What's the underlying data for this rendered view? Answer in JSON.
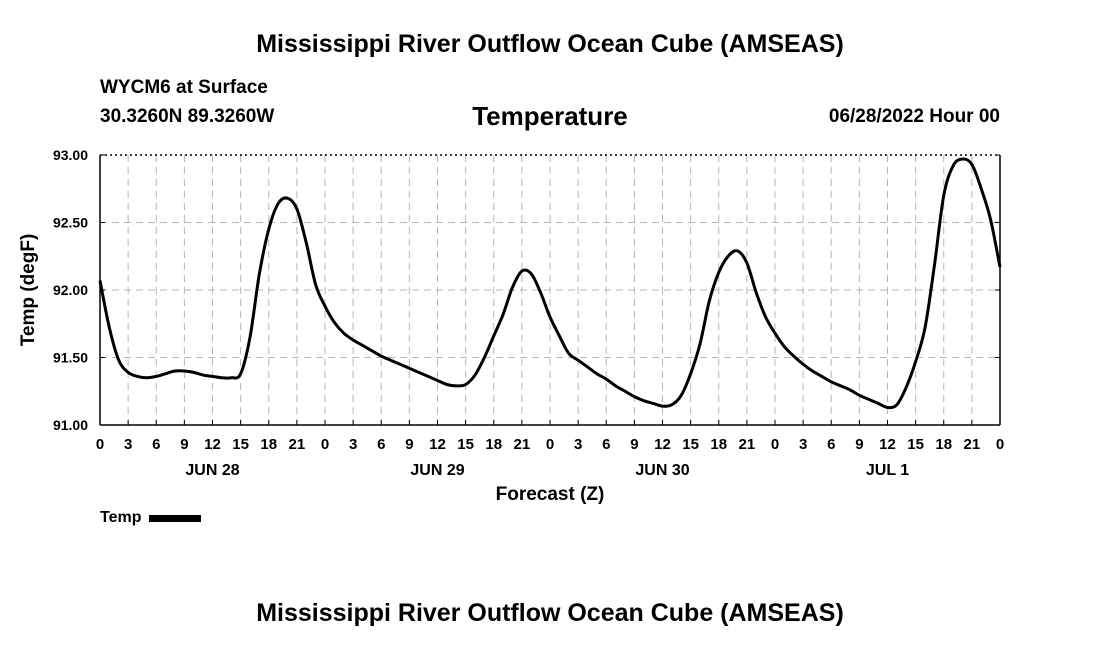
{
  "header": {
    "title": "Mississippi River Outflow Ocean Cube (AMSEAS)",
    "station": "WYCM6 at Surface",
    "coords": "30.3260N  89.3260W",
    "datetime": "06/28/2022 Hour 00"
  },
  "footer": {
    "title": "Mississippi River Outflow Ocean Cube (AMSEAS)"
  },
  "chart_data": {
    "type": "line",
    "title": "Temperature",
    "xlabel": "Forecast (Z)",
    "ylabel": "Temp (degF)",
    "xlim": [
      0,
      96
    ],
    "ylim": [
      91.0,
      93.0
    ],
    "y_ticks": [
      "91.00",
      "91.50",
      "92.00",
      "92.50",
      "93.00"
    ],
    "x_ticks": [
      0,
      3,
      6,
      9,
      12,
      15,
      18,
      21,
      24,
      27,
      30,
      33,
      36,
      39,
      42,
      45,
      48,
      51,
      54,
      57,
      60,
      63,
      66,
      69,
      72,
      75,
      78,
      81,
      84,
      87,
      90,
      93,
      96
    ],
    "x_tick_labels": [
      "0",
      "3",
      "6",
      "9",
      "12",
      "15",
      "18",
      "21",
      "0",
      "3",
      "6",
      "9",
      "12",
      "15",
      "18",
      "21",
      "0",
      "3",
      "6",
      "9",
      "12",
      "15",
      "18",
      "21",
      "0",
      "3",
      "6",
      "9",
      "12",
      "15",
      "18",
      "21",
      "0"
    ],
    "day_labels": [
      {
        "x": 12,
        "label": "JUN 28"
      },
      {
        "x": 36,
        "label": "JUN 29"
      },
      {
        "x": 60,
        "label": "JUN 30"
      },
      {
        "x": 84,
        "label": "JUL 1"
      }
    ],
    "grid": true,
    "line_color": "#000000",
    "series": [
      {
        "name": "Temp",
        "x": [
          0,
          1,
          2,
          3,
          4,
          5,
          6,
          7,
          8,
          9,
          10,
          11,
          12,
          13,
          14,
          15,
          16,
          17,
          18,
          19,
          20,
          21,
          22,
          23,
          24,
          25,
          26,
          27,
          28,
          29,
          30,
          31,
          32,
          33,
          34,
          35,
          36,
          37,
          38,
          39,
          40,
          41,
          42,
          43,
          44,
          45,
          46,
          47,
          48,
          49,
          50,
          51,
          52,
          53,
          54,
          55,
          56,
          57,
          58,
          59,
          60,
          61,
          62,
          63,
          64,
          65,
          66,
          67,
          68,
          69,
          70,
          71,
          72,
          73,
          74,
          75,
          76,
          77,
          78,
          79,
          80,
          81,
          82,
          83,
          84,
          85,
          86,
          87,
          88,
          89,
          90,
          91,
          92,
          93,
          94,
          95,
          96
        ],
        "values": [
          92.07,
          91.72,
          91.48,
          91.39,
          91.36,
          91.35,
          91.36,
          91.38,
          91.4,
          91.4,
          91.39,
          91.37,
          91.36,
          91.35,
          91.35,
          91.38,
          91.65,
          92.12,
          92.45,
          92.64,
          92.68,
          92.6,
          92.35,
          92.04,
          91.88,
          91.76,
          91.68,
          91.63,
          91.59,
          91.55,
          91.51,
          91.48,
          91.45,
          91.42,
          91.39,
          91.36,
          91.33,
          91.3,
          91.29,
          91.3,
          91.37,
          91.5,
          91.66,
          91.82,
          92.02,
          92.14,
          92.12,
          91.98,
          91.8,
          91.66,
          91.53,
          91.48,
          91.43,
          91.38,
          91.34,
          91.29,
          91.25,
          91.21,
          91.18,
          91.16,
          91.14,
          91.15,
          91.22,
          91.38,
          91.6,
          91.92,
          92.13,
          92.25,
          92.29,
          92.2,
          91.98,
          91.8,
          91.68,
          91.58,
          91.51,
          91.45,
          91.4,
          91.36,
          91.32,
          91.29,
          91.26,
          91.22,
          91.19,
          91.16,
          91.13,
          91.15,
          91.28,
          91.47,
          91.72,
          92.18,
          92.7,
          92.92,
          92.97,
          92.93,
          92.75,
          92.52,
          92.17
        ]
      }
    ],
    "legend": {
      "label": "Temp",
      "placement": "bottom-left"
    }
  }
}
